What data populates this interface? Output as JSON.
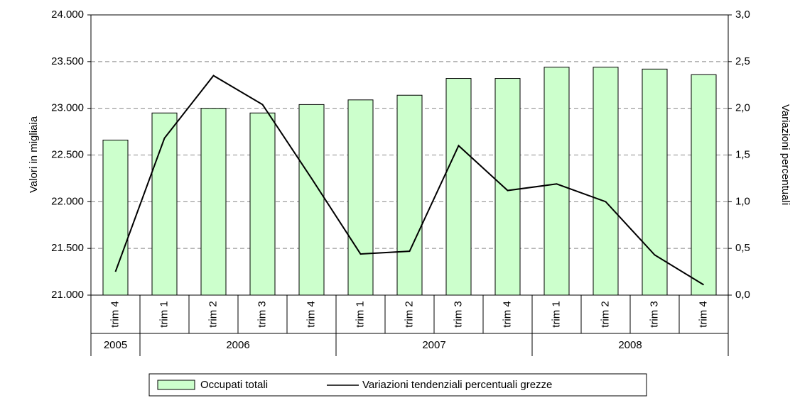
{
  "chart_data": {
    "type": "bar-line",
    "categories": [
      "trim 4",
      "trim 1",
      "trim 2",
      "trim 3",
      "trim 4",
      "trim 1",
      "trim 2",
      "trim 3",
      "trim 4",
      "trim 1",
      "trim 2",
      "trim 3",
      "trim 4"
    ],
    "category_groups": [
      "2005",
      "2006",
      "2006",
      "2006",
      "2006",
      "2007",
      "2007",
      "2007",
      "2007",
      "2008",
      "2008",
      "2008",
      "2008"
    ],
    "series": [
      {
        "name": "Occupati totali",
        "type": "bar",
        "color": "#ccffcc",
        "values": [
          22660,
          22950,
          23000,
          22950,
          23040,
          23090,
          23140,
          23320,
          23320,
          23440,
          23440,
          23420,
          23360
        ]
      },
      {
        "name": "Variazioni tendenziali percentuali grezze",
        "type": "line",
        "axis": "y2",
        "color": "#000000",
        "values": [
          0.25,
          1.68,
          2.35,
          2.04,
          1.25,
          0.44,
          0.47,
          1.6,
          1.12,
          1.19,
          1.0,
          0.43,
          0.11
        ]
      }
    ],
    "ylabel": "Valori in migliaia",
    "y2label": "Variazioni percentuali",
    "ylim": [
      21000,
      24000
    ],
    "yticks": [
      {
        "value": 21000,
        "label": "21.000"
      },
      {
        "value": 21500,
        "label": "21.500"
      },
      {
        "value": 22000,
        "label": "22.000"
      },
      {
        "value": 22500,
        "label": "22.500"
      },
      {
        "value": 23000,
        "label": "23.000"
      },
      {
        "value": 23500,
        "label": "23.500"
      },
      {
        "value": 24000,
        "label": "24.000"
      }
    ],
    "y2lim": [
      0,
      3
    ],
    "y2ticks": [
      {
        "value": 0,
        "label": "0,0"
      },
      {
        "value": 0.5,
        "label": "0,5"
      },
      {
        "value": 1,
        "label": "1,0"
      },
      {
        "value": 1.5,
        "label": "1,5"
      },
      {
        "value": 2,
        "label": "2,0"
      },
      {
        "value": 2.5,
        "label": "2,5"
      },
      {
        "value": 3,
        "label": "3,0"
      }
    ],
    "grid": true
  }
}
